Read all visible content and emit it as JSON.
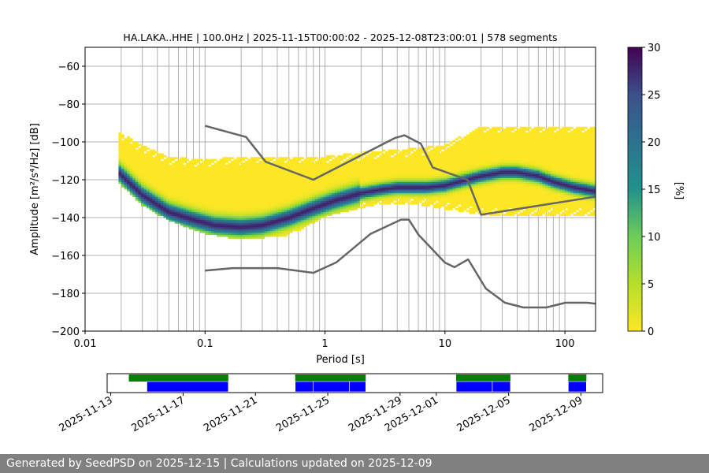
{
  "chart_data": {
    "type": "heatmap",
    "title": "HA.LAKA..HHE | 100.0Hz | 2025-11-15T00:00:02 - 2025-12-08T23:00:01 | 578 segments",
    "xlabel": "Period [s]",
    "ylabel": "Amplitude [m²/s⁴/Hz] [dB]",
    "xscale": "log",
    "xlim": [
      0.01,
      180
    ],
    "ylim": [
      -200,
      -50
    ],
    "x_ticks": [
      {
        "value": 0.01,
        "label": "0.01"
      },
      {
        "value": 0.1,
        "label": "0.1"
      },
      {
        "value": 1,
        "label": "1"
      },
      {
        "value": 10,
        "label": "10"
      },
      {
        "value": 100,
        "label": "100"
      }
    ],
    "y_ticks": [
      {
        "value": -60,
        "label": "−60"
      },
      {
        "value": -80,
        "label": "−80"
      },
      {
        "value": -100,
        "label": "−100"
      },
      {
        "value": -120,
        "label": "−120"
      },
      {
        "value": -140,
        "label": "−140"
      },
      {
        "value": -160,
        "label": "−160"
      },
      {
        "value": -180,
        "label": "−180"
      },
      {
        "value": -200,
        "label": "−200"
      }
    ],
    "colorbar": {
      "label": "[%]",
      "range": [
        0,
        30
      ],
      "ticks": [
        {
          "value": 0,
          "label": "0"
        },
        {
          "value": 5,
          "label": "5"
        },
        {
          "value": 10,
          "label": "10"
        },
        {
          "value": 15,
          "label": "15"
        },
        {
          "value": 20,
          "label": "20"
        },
        {
          "value": 25,
          "label": "25"
        },
        {
          "value": 30,
          "label": "30"
        }
      ],
      "colormap": "viridis_r"
    },
    "mode_curve": {
      "name": "mode",
      "x": [
        0.019,
        0.03,
        0.05,
        0.08,
        0.12,
        0.2,
        0.3,
        0.5,
        0.8,
        1.2,
        2,
        3,
        4,
        5,
        7,
        10,
        15,
        20,
        30,
        40,
        60,
        80,
        120,
        180
      ],
      "y": [
        -116,
        -128,
        -137,
        -141,
        -144,
        -145,
        -144,
        -140,
        -135,
        -131,
        -127,
        -125,
        -124,
        -124,
        -124,
        -123,
        -120,
        -118,
        -116,
        -116,
        -118,
        -121,
        -124,
        -126
      ]
    },
    "pdf_spread": [
      {
        "x": 0.019,
        "upper": -95,
        "lower": -122
      },
      {
        "x": 0.03,
        "upper": -102,
        "lower": -134
      },
      {
        "x": 0.05,
        "upper": -108,
        "lower": -142
      },
      {
        "x": 0.1,
        "upper": -110,
        "lower": -149
      },
      {
        "x": 0.2,
        "upper": -108,
        "lower": -152
      },
      {
        "x": 0.5,
        "upper": -108,
        "lower": -150
      },
      {
        "x": 1,
        "upper": -108,
        "lower": -140
      },
      {
        "x": 3,
        "upper": -105,
        "lower": -133
      },
      {
        "x": 5,
        "upper": -104,
        "lower": -133
      },
      {
        "x": 10,
        "upper": -102,
        "lower": -136
      },
      {
        "x": 20,
        "upper": -92,
        "lower": -139
      },
      {
        "x": 50,
        "upper": -92,
        "lower": -139
      },
      {
        "x": 180,
        "upper": -92,
        "lower": -139
      }
    ],
    "noise_models": [
      {
        "name": "high-noise-model",
        "x": [
          0.1,
          0.22,
          0.32,
          0.8,
          3.8,
          4.6,
          6.3,
          7.9,
          15.4,
          20,
          354.8
        ],
        "y": [
          -91.5,
          -97.4,
          -110.5,
          -120,
          -98,
          -96.5,
          -101,
          -113.5,
          -120,
          -138.5,
          -126
        ]
      },
      {
        "name": "low-noise-model",
        "x": [
          0.1,
          0.17,
          0.4,
          0.8,
          1.24,
          2.4,
          4.3,
          5,
          6,
          10,
          12,
          15.6,
          21.9,
          31.6,
          45,
          70,
          101,
          154,
          328
        ],
        "y": [
          -168,
          -166.7,
          -166.7,
          -169.2,
          -163.7,
          -148.6,
          -141.1,
          -141.1,
          -149,
          -163.8,
          -166.2,
          -162.1,
          -177.5,
          -185,
          -187.5,
          -187.5,
          -185,
          -185,
          -187.5
        ]
      }
    ],
    "grid": true,
    "legend": "none"
  },
  "timeline": {
    "tick_labels": [
      "2025-11-13",
      "2025-11-17",
      "2025-11-21",
      "2025-11-25",
      "2025-11-29",
      "2025-12-01",
      "2025-12-05",
      "2025-12-09"
    ],
    "tick_days": [
      0,
      4,
      8,
      12,
      16,
      18,
      22,
      26
    ],
    "start_day": -0.2,
    "end_day": 27.2,
    "available_color": "#007f00",
    "used_color": "#0000ff",
    "available_segments": [
      [
        1,
        6.5
      ],
      [
        10.2,
        14.1
      ],
      [
        19.1,
        22.1
      ],
      [
        25.3,
        26.3
      ]
    ],
    "used_segments": [
      [
        2,
        6.5
      ],
      [
        10.2,
        11.2
      ],
      [
        11.2,
        13.2
      ],
      [
        13.2,
        14.1
      ],
      [
        19.1,
        21.1
      ],
      [
        21.1,
        22.1
      ],
      [
        25.3,
        26.3
      ]
    ]
  },
  "footer": {
    "text": "Generated by SeedPSD on 2025-12-15 | Calculations updated on 2025-12-09"
  }
}
